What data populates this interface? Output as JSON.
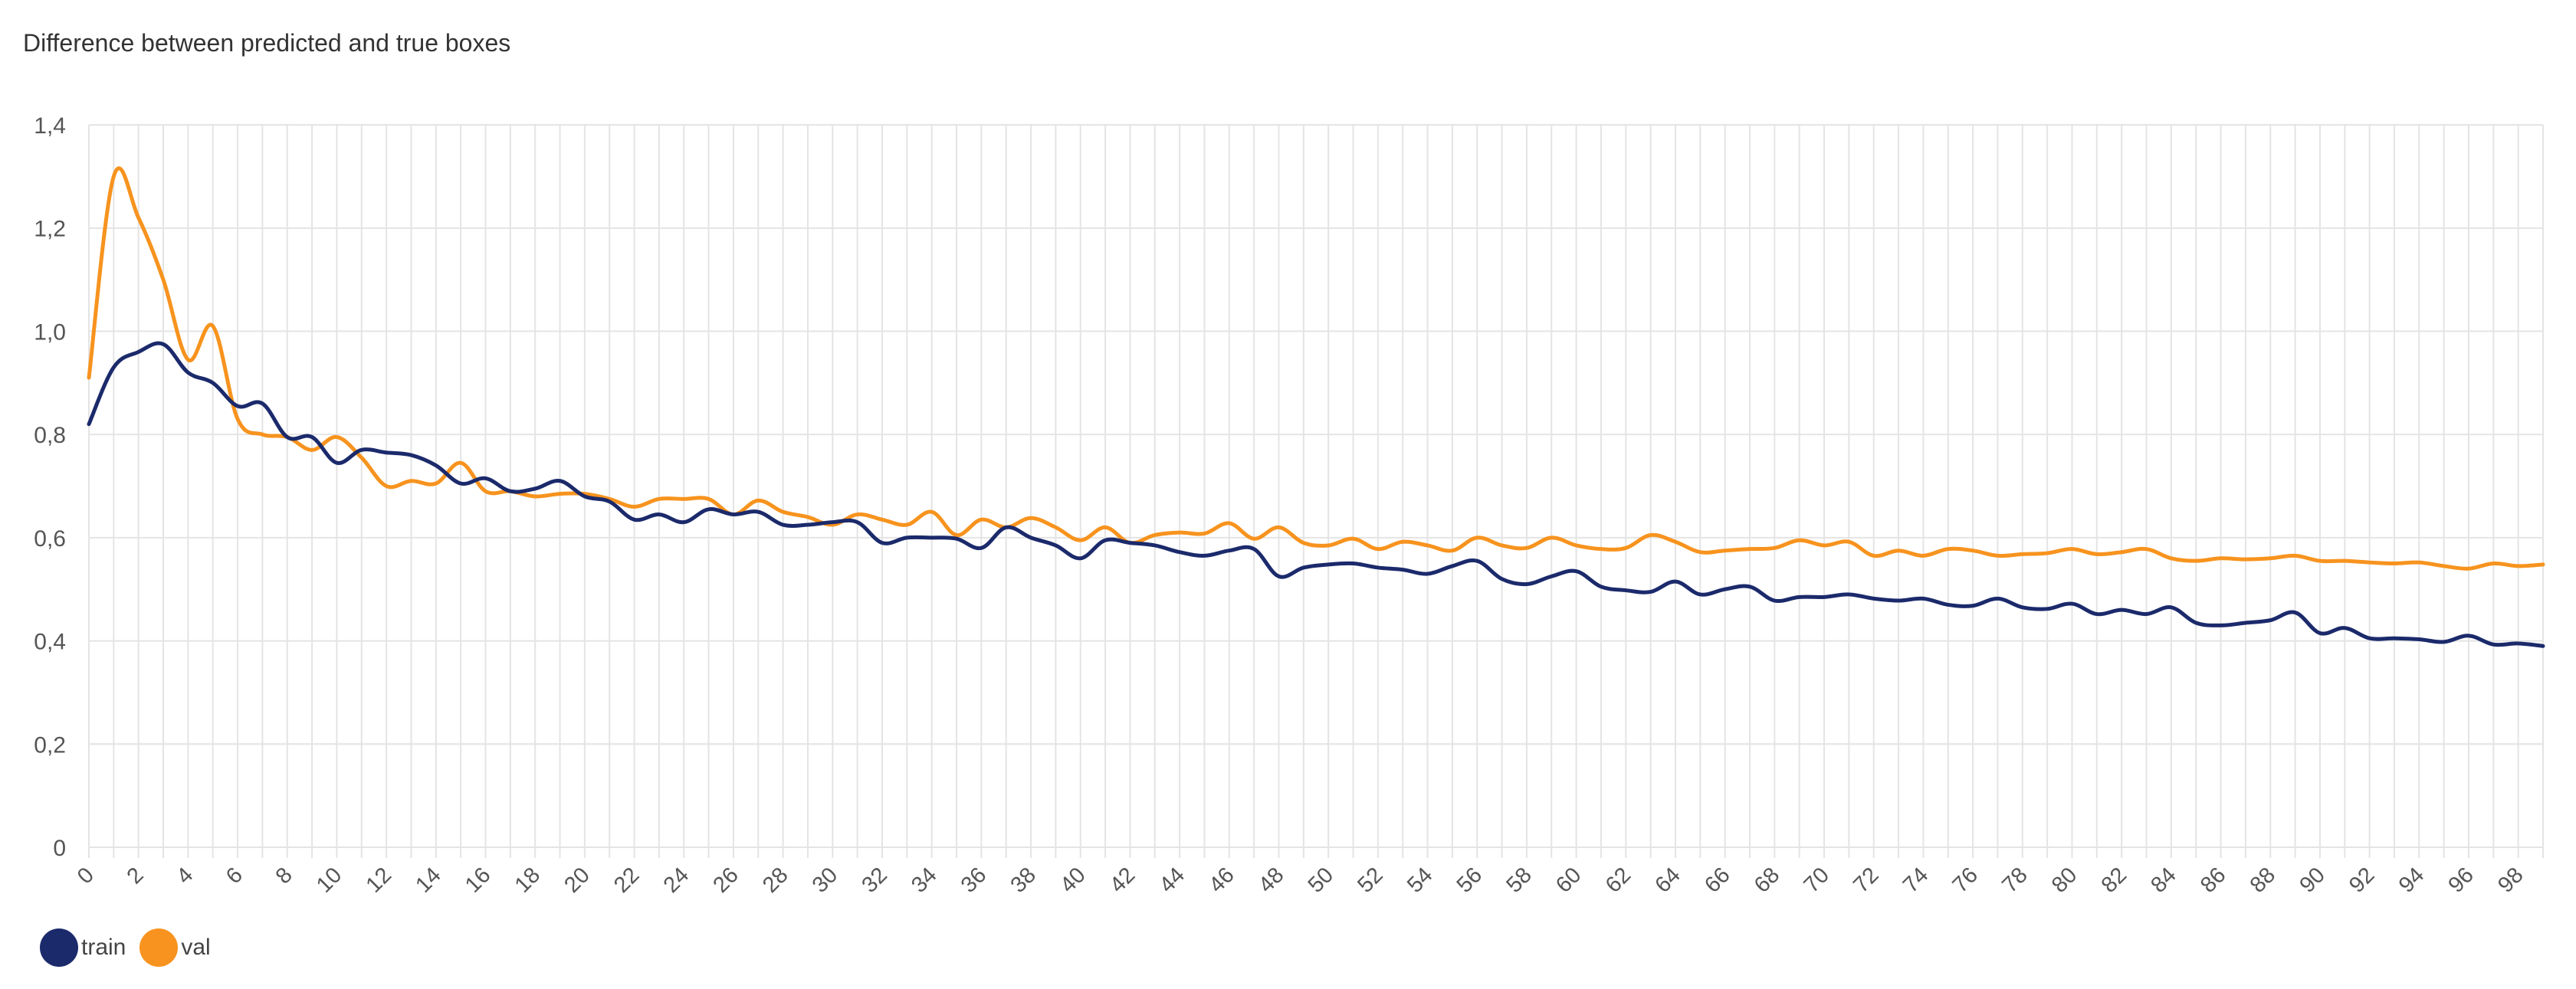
{
  "chart_data": {
    "type": "line",
    "title": "Difference between predicted and true boxes",
    "xlabel": "",
    "ylabel": "",
    "ylim": [
      0,
      1.4
    ],
    "yticks": [
      "0",
      "0,2",
      "0,4",
      "0,6",
      "0,8",
      "1,0",
      "1,2",
      "1,4"
    ],
    "xlim": [
      0,
      99
    ],
    "xtick_step": 2,
    "grid": true,
    "legend_position": "bottom-left",
    "series": [
      {
        "name": "train",
        "color": "#1b2a6b",
        "values": [
          0.82,
          0.93,
          0.96,
          0.975,
          0.92,
          0.9,
          0.855,
          0.86,
          0.795,
          0.795,
          0.745,
          0.77,
          0.765,
          0.76,
          0.74,
          0.705,
          0.715,
          0.69,
          0.695,
          0.71,
          0.68,
          0.67,
          0.635,
          0.645,
          0.63,
          0.655,
          0.645,
          0.65,
          0.625,
          0.625,
          0.63,
          0.63,
          0.59,
          0.6,
          0.6,
          0.598,
          0.58,
          0.62,
          0.6,
          0.585,
          0.56,
          0.595,
          0.59,
          0.585,
          0.572,
          0.565,
          0.575,
          0.578,
          0.525,
          0.542,
          0.548,
          0.55,
          0.542,
          0.538,
          0.53,
          0.545,
          0.555,
          0.52,
          0.51,
          0.525,
          0.535,
          0.505,
          0.498,
          0.495,
          0.515,
          0.49,
          0.5,
          0.505,
          0.478,
          0.485,
          0.485,
          0.49,
          0.482,
          0.478,
          0.482,
          0.47,
          0.468,
          0.482,
          0.465,
          0.462,
          0.472,
          0.452,
          0.46,
          0.452,
          0.465,
          0.435,
          0.43,
          0.435,
          0.44,
          0.455,
          0.415,
          0.425,
          0.405,
          0.405,
          0.403,
          0.398,
          0.41,
          0.393,
          0.395,
          0.39
        ]
      },
      {
        "name": "val",
        "color": "#f7931e",
        "values": [
          0.91,
          1.3,
          1.22,
          1.1,
          0.945,
          1.01,
          0.83,
          0.8,
          0.795,
          0.77,
          0.795,
          0.755,
          0.7,
          0.71,
          0.705,
          0.745,
          0.69,
          0.69,
          0.68,
          0.685,
          0.685,
          0.675,
          0.66,
          0.675,
          0.675,
          0.675,
          0.645,
          0.672,
          0.65,
          0.64,
          0.625,
          0.645,
          0.635,
          0.625,
          0.65,
          0.605,
          0.635,
          0.62,
          0.638,
          0.62,
          0.595,
          0.62,
          0.59,
          0.605,
          0.61,
          0.608,
          0.628,
          0.598,
          0.62,
          0.59,
          0.585,
          0.598,
          0.578,
          0.592,
          0.585,
          0.575,
          0.6,
          0.585,
          0.58,
          0.6,
          0.585,
          0.578,
          0.58,
          0.605,
          0.592,
          0.572,
          0.575,
          0.578,
          0.58,
          0.595,
          0.585,
          0.592,
          0.565,
          0.575,
          0.565,
          0.578,
          0.575,
          0.565,
          0.568,
          0.57,
          0.578,
          0.568,
          0.572,
          0.578,
          0.56,
          0.555,
          0.56,
          0.558,
          0.56,
          0.565,
          0.555,
          0.555,
          0.552,
          0.55,
          0.552,
          0.545,
          0.54,
          0.55,
          0.545,
          0.548
        ]
      }
    ]
  }
}
